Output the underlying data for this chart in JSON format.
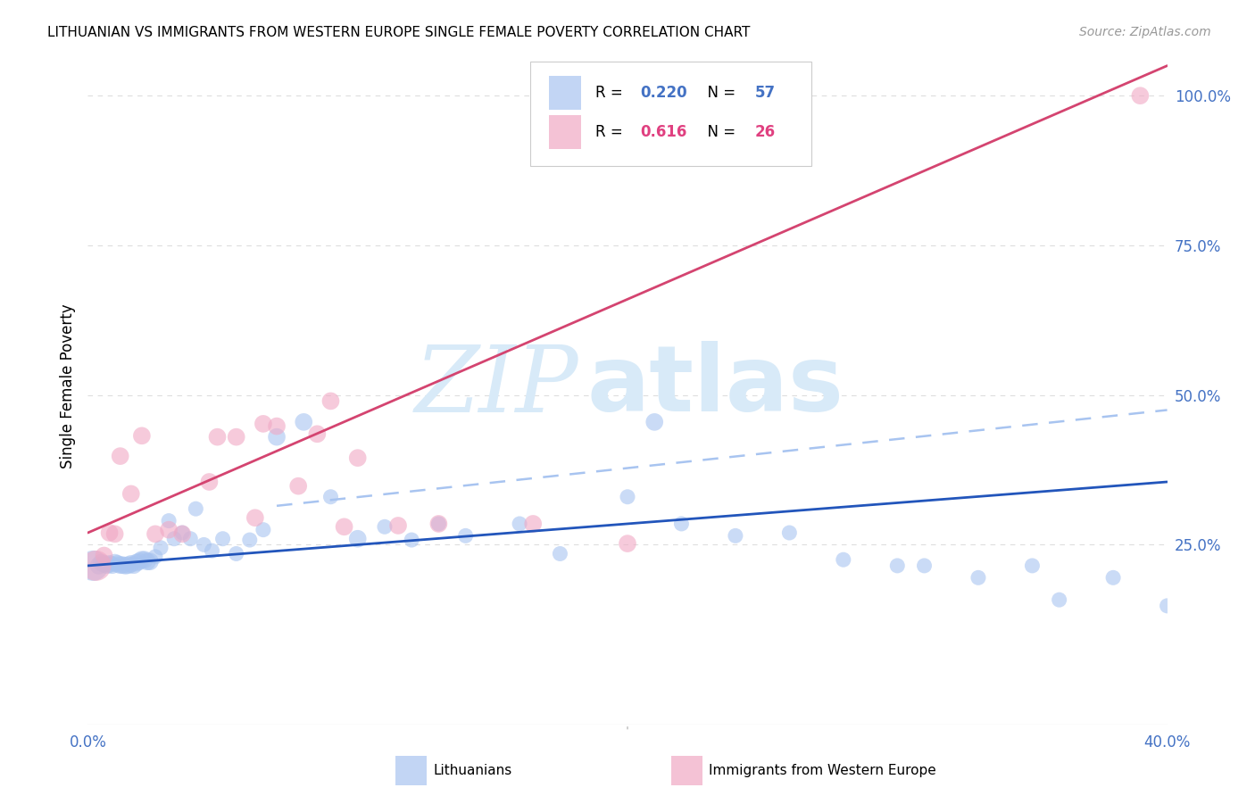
{
  "title": "LITHUANIAN VS IMMIGRANTS FROM WESTERN EUROPE SINGLE FEMALE POVERTY CORRELATION CHART",
  "source": "Source: ZipAtlas.com",
  "ylabel": "Single Female Poverty",
  "xlim": [
    0.0,
    0.4
  ],
  "ylim": [
    -0.05,
    1.08
  ],
  "xtick_vals": [
    0.0,
    0.1,
    0.2,
    0.3,
    0.4
  ],
  "xtick_labels": [
    "0.0%",
    "",
    "",
    "",
    "40.0%"
  ],
  "ytick_vals": [
    0.25,
    0.5,
    0.75,
    1.0
  ],
  "ytick_labels": [
    "25.0%",
    "50.0%",
    "75.0%",
    "100.0%"
  ],
  "blue_color": "#a8c4f0",
  "blue_edge": "none",
  "blue_line_color": "#2255bb",
  "pink_color": "#f0a8c4",
  "pink_edge": "none",
  "pink_line_color": "#d44470",
  "dashed_color": "#a8c4f0",
  "grid_color": "#dddddd",
  "text_color": "#4472c4",
  "watermark_zip_color": "#d8eaf8",
  "watermark_atlas_color": "#d8eaf8",
  "blue_R": 0.22,
  "blue_N": 57,
  "pink_R": 0.616,
  "pink_N": 26,
  "blue_line": [
    0.0,
    0.4,
    0.215,
    0.355
  ],
  "pink_line": [
    0.0,
    0.4,
    0.27,
    1.05
  ],
  "dashed_line": [
    0.07,
    0.4,
    0.315,
    0.475
  ],
  "blue_x": [
    0.002,
    0.004,
    0.005,
    0.006,
    0.007,
    0.008,
    0.009,
    0.01,
    0.011,
    0.012,
    0.013,
    0.014,
    0.015,
    0.016,
    0.017,
    0.018,
    0.019,
    0.02,
    0.021,
    0.022,
    0.023,
    0.025,
    0.027,
    0.03,
    0.032,
    0.035,
    0.038,
    0.04,
    0.043,
    0.046,
    0.05,
    0.055,
    0.06,
    0.065,
    0.07,
    0.08,
    0.09,
    0.1,
    0.11,
    0.12,
    0.13,
    0.14,
    0.16,
    0.175,
    0.2,
    0.21,
    0.22,
    0.24,
    0.26,
    0.28,
    0.3,
    0.31,
    0.33,
    0.35,
    0.36,
    0.38,
    0.4
  ],
  "blue_y": [
    0.215,
    0.215,
    0.22,
    0.218,
    0.216,
    0.218,
    0.216,
    0.22,
    0.218,
    0.216,
    0.216,
    0.215,
    0.216,
    0.218,
    0.216,
    0.22,
    0.222,
    0.225,
    0.225,
    0.222,
    0.222,
    0.23,
    0.245,
    0.29,
    0.26,
    0.27,
    0.26,
    0.31,
    0.25,
    0.24,
    0.26,
    0.235,
    0.258,
    0.275,
    0.43,
    0.455,
    0.33,
    0.26,
    0.28,
    0.258,
    0.285,
    0.265,
    0.285,
    0.235,
    0.33,
    0.455,
    0.285,
    0.265,
    0.27,
    0.225,
    0.215,
    0.215,
    0.195,
    0.215,
    0.158,
    0.195,
    0.148
  ],
  "blue_s": [
    600,
    200,
    200,
    200,
    200,
    200,
    200,
    200,
    200,
    200,
    200,
    200,
    200,
    200,
    200,
    200,
    200,
    200,
    200,
    200,
    200,
    150,
    150,
    150,
    150,
    150,
    150,
    150,
    150,
    150,
    150,
    150,
    150,
    150,
    200,
    200,
    150,
    200,
    150,
    150,
    150,
    150,
    150,
    150,
    150,
    200,
    150,
    150,
    150,
    150,
    150,
    150,
    150,
    150,
    150,
    150,
    150
  ],
  "pink_x": [
    0.003,
    0.006,
    0.008,
    0.01,
    0.012,
    0.016,
    0.02,
    0.025,
    0.03,
    0.035,
    0.045,
    0.048,
    0.055,
    0.062,
    0.065,
    0.07,
    0.078,
    0.085,
    0.09,
    0.095,
    0.1,
    0.115,
    0.13,
    0.165,
    0.2,
    0.39
  ],
  "pink_y": [
    0.215,
    0.232,
    0.27,
    0.268,
    0.398,
    0.335,
    0.432,
    0.268,
    0.275,
    0.268,
    0.355,
    0.43,
    0.43,
    0.295,
    0.452,
    0.448,
    0.348,
    0.435,
    0.49,
    0.28,
    0.395,
    0.282,
    0.285,
    0.285,
    0.252,
    1.0
  ],
  "pink_s": [
    600,
    200,
    200,
    200,
    200,
    200,
    200,
    200,
    200,
    200,
    200,
    200,
    200,
    200,
    200,
    200,
    200,
    200,
    200,
    200,
    200,
    200,
    200,
    200,
    200,
    200
  ]
}
